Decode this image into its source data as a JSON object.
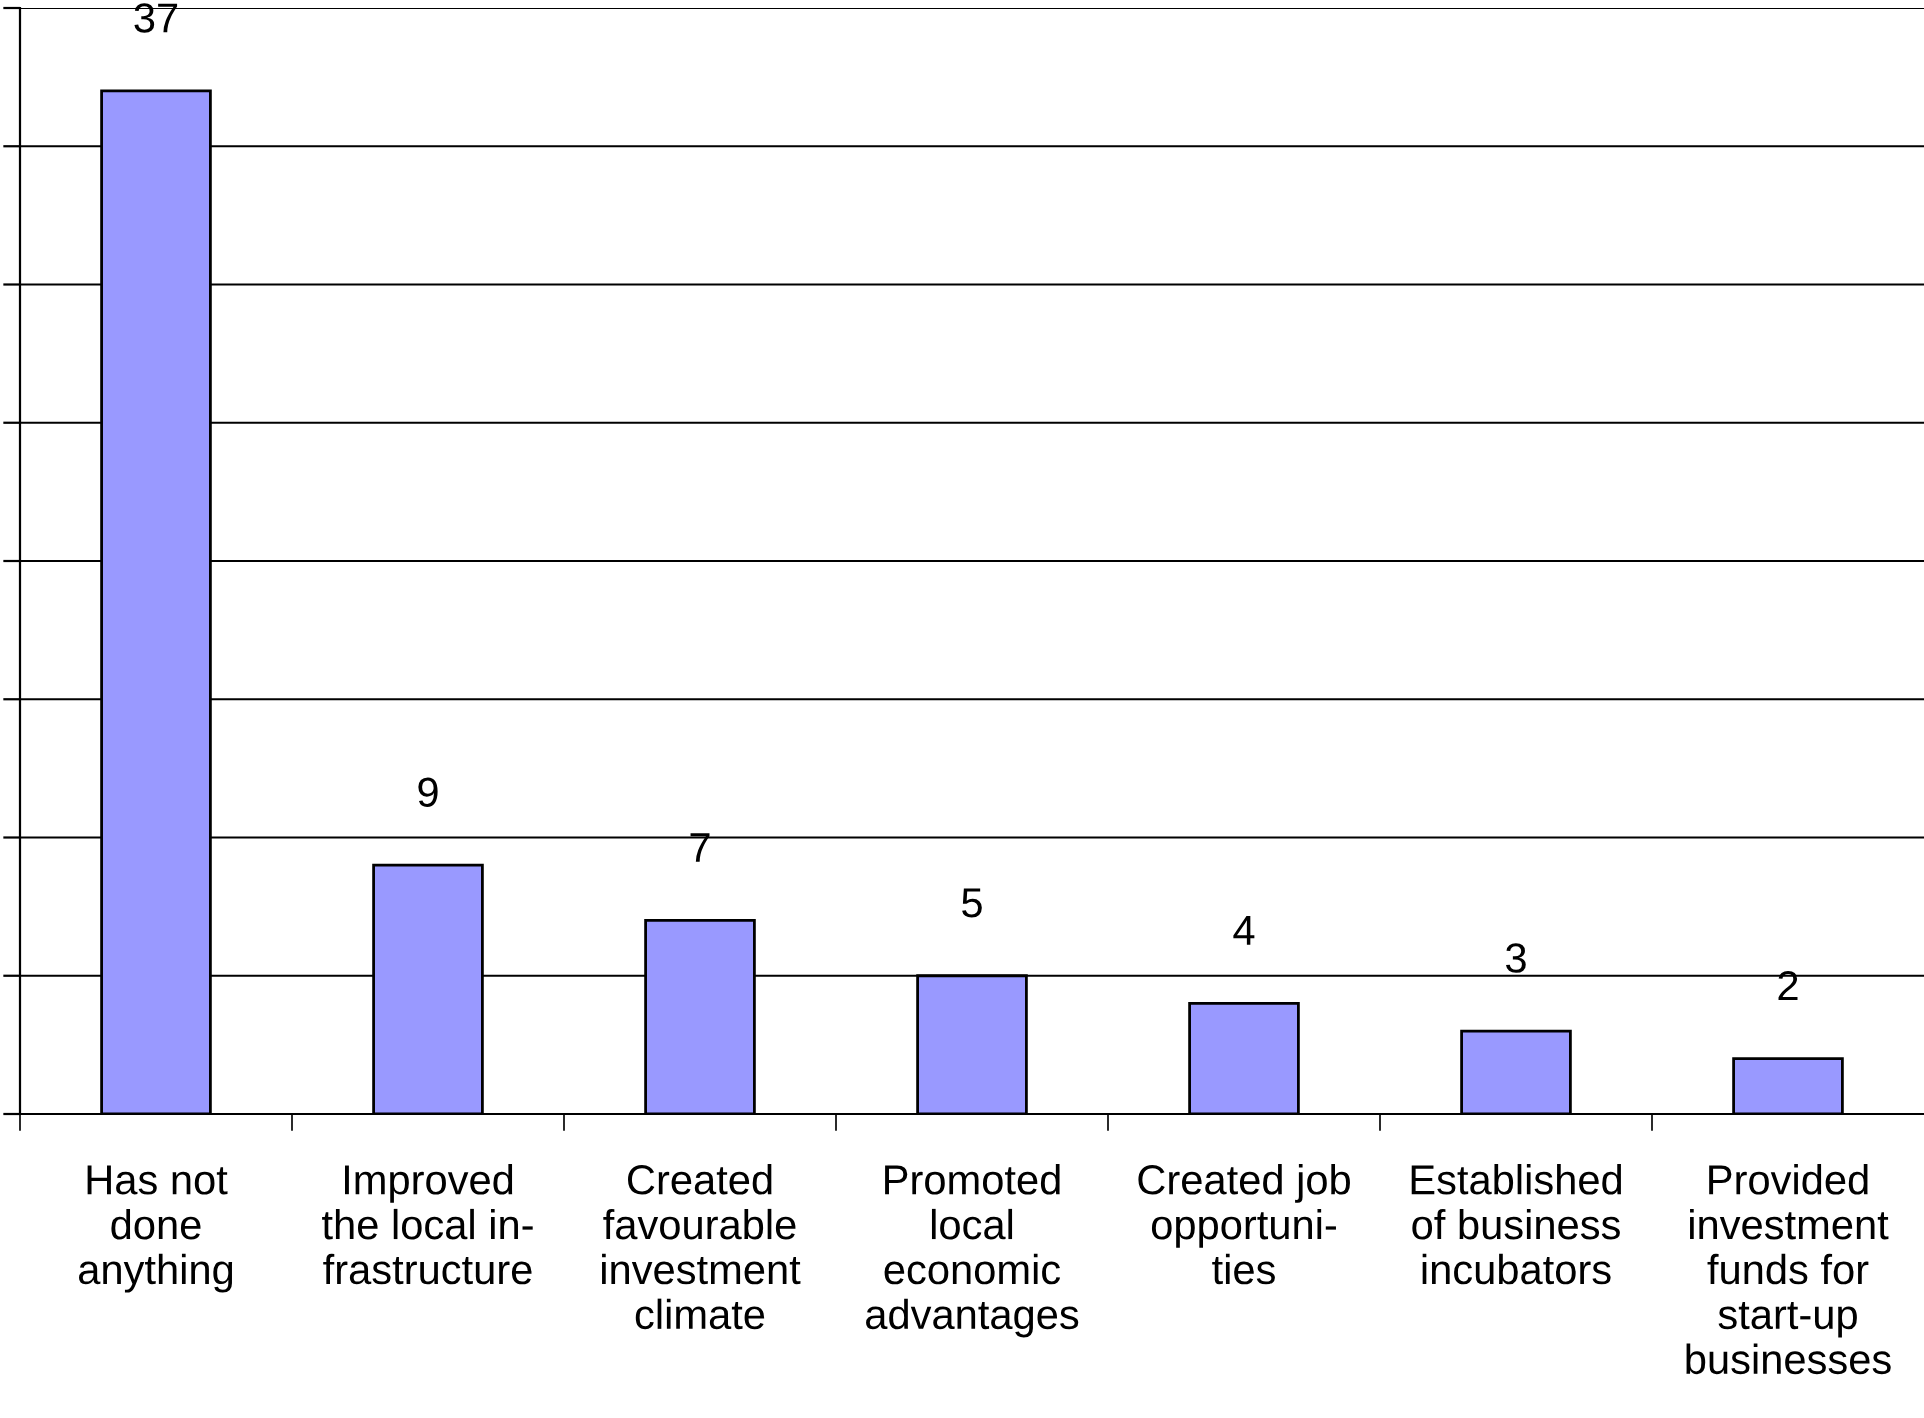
{
  "chart_data": {
    "type": "bar",
    "categories": [
      "Has not\ndone\nanything",
      "Improved\nthe local in-\nfrastructure",
      "Created\nfavourable\ninvestment\nclimate",
      "Promoted\nlocal\neconomic\nadvantages",
      "Created job\nopportuni-\nties",
      "Established\nof business\nincubators",
      "Provided\ninvestment\nfunds for\nstart-up\nbusinesses"
    ],
    "values": [
      37,
      9,
      7,
      5,
      4,
      3,
      2
    ],
    "color": "#9999ff",
    "ylim": [
      0,
      40
    ],
    "yticks": [
      {
        "value": 0,
        "label": null
      },
      {
        "value": 5,
        "label": null
      },
      {
        "value": 10,
        "label": null
      },
      {
        "value": 15,
        "label": null
      },
      {
        "value": 20,
        "label": null
      },
      {
        "value": 25,
        "label": null
      },
      {
        "value": 30,
        "label": null
      },
      {
        "value": 35,
        "label": null
      },
      {
        "value": 40,
        "label": null
      }
    ],
    "tick_labels": "x",
    "grid": "y",
    "data_labels": true
  }
}
